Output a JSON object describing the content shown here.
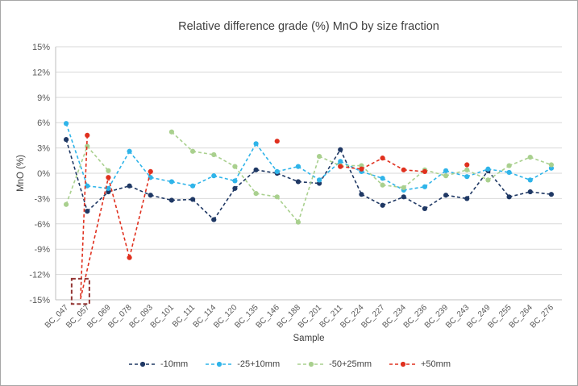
{
  "chart_data": {
    "type": "line",
    "title": "Relative difference grade (%) MnO by size fraction",
    "xlabel": "Sample",
    "ylabel": "MnO (%)",
    "ylim": [
      -15,
      15
    ],
    "ytick_step": 3,
    "ytick_labels": [
      "15%",
      "12%",
      "9%",
      "6%",
      "3%",
      "0%",
      "-3%",
      "-6%",
      "-9%",
      "-12%",
      "-15%"
    ],
    "grid": true,
    "legend_position": "bottom",
    "line_style": "dashed",
    "categories": [
      "BC_047",
      "BC_057",
      "BC_069",
      "BC_078",
      "BC_093",
      "BC_101",
      "BC_111",
      "BC_114",
      "BC_120",
      "BC_135",
      "BC_146",
      "BC_188",
      "BC_201",
      "BC_211",
      "BC_224",
      "BC_227",
      "BC_234",
      "BC_236",
      "BC_239",
      "BC_243",
      "BC_249",
      "BC_255",
      "BC_264",
      "BC_276"
    ],
    "series": [
      {
        "name": "-10mm",
        "color": "#1f3864",
        "points": [
          [
            0,
            4.0
          ],
          [
            1,
            -4.5
          ],
          [
            2,
            -2.2
          ],
          [
            3,
            -1.5
          ],
          [
            4,
            -2.6
          ],
          [
            5,
            -3.2
          ],
          [
            6,
            -3.1
          ],
          [
            7,
            -5.5
          ],
          [
            8,
            -1.8
          ],
          [
            9,
            0.4
          ],
          [
            10,
            0.0
          ],
          [
            11,
            -1.0
          ],
          [
            12,
            -1.2
          ],
          [
            13,
            2.8
          ],
          [
            14,
            -2.5
          ],
          [
            15,
            -3.8
          ],
          [
            16,
            -2.8
          ],
          [
            17,
            -4.2
          ],
          [
            18,
            -2.6
          ],
          [
            19,
            -3.0
          ],
          [
            20,
            0.3
          ],
          [
            21,
            -2.8
          ],
          [
            22,
            -2.2
          ],
          [
            23,
            -2.5
          ]
        ],
        "skip_markers": []
      },
      {
        "name": "-25+10mm",
        "color": "#2fb4e9",
        "points": [
          [
            0,
            5.9
          ],
          [
            1,
            -1.5
          ],
          [
            2,
            -1.8
          ],
          [
            3,
            2.6
          ],
          [
            4,
            -0.5
          ],
          [
            5,
            -1.0
          ],
          [
            6,
            -1.5
          ],
          [
            7,
            -0.3
          ],
          [
            8,
            -0.9
          ],
          [
            9,
            3.5
          ],
          [
            10,
            0.2
          ],
          [
            11,
            0.8
          ],
          [
            12,
            -0.8
          ],
          [
            13,
            1.4
          ],
          [
            14,
            0.2
          ],
          [
            15,
            -0.6
          ],
          [
            16,
            -2.0
          ],
          [
            17,
            -1.6
          ],
          [
            18,
            0.3
          ],
          [
            19,
            -0.4
          ],
          [
            20,
            0.5
          ],
          [
            21,
            0.1
          ],
          [
            22,
            -0.8
          ],
          [
            23,
            0.6
          ]
        ],
        "skip_markers": []
      },
      {
        "name": "-50+25mm",
        "color": "#a9d08e",
        "points": [
          [
            0,
            -3.7
          ],
          [
            1,
            3.2
          ],
          [
            2,
            0.3
          ],
          [
            5,
            4.9
          ],
          [
            6,
            2.6
          ],
          [
            7,
            2.2
          ],
          [
            8,
            0.8
          ],
          [
            9,
            -2.4
          ],
          [
            10,
            -2.8
          ],
          [
            11,
            -5.8
          ],
          [
            12,
            2.0
          ],
          [
            13,
            0.9
          ],
          [
            14,
            0.9
          ],
          [
            15,
            -1.4
          ],
          [
            16,
            -1.7
          ],
          [
            17,
            0.4
          ],
          [
            18,
            -0.3
          ],
          [
            19,
            0.4
          ],
          [
            20,
            -0.8
          ],
          [
            21,
            0.9
          ],
          [
            22,
            1.9
          ],
          [
            23,
            1.0
          ]
        ],
        "skip_markers": []
      },
      {
        "name": "+50mm",
        "color": "#e0301e",
        "points": [
          [
            1,
            4.5
          ],
          [
            0.68,
            -14.9
          ],
          [
            2,
            -0.5
          ],
          [
            3,
            -10.0
          ],
          [
            4,
            0.2
          ],
          [
            10,
            3.8
          ],
          [
            13,
            0.8
          ],
          [
            14,
            0.5
          ],
          [
            15,
            1.8
          ],
          [
            16,
            0.4
          ],
          [
            17,
            0.2
          ],
          [
            19,
            1.0
          ]
        ],
        "skip_markers": [
          1
        ]
      }
    ],
    "annotation": {
      "outlier_box": {
        "color": "#943634",
        "i_center": 0.68,
        "v_top": -12.5,
        "v_bottom": -15.5
      }
    }
  }
}
